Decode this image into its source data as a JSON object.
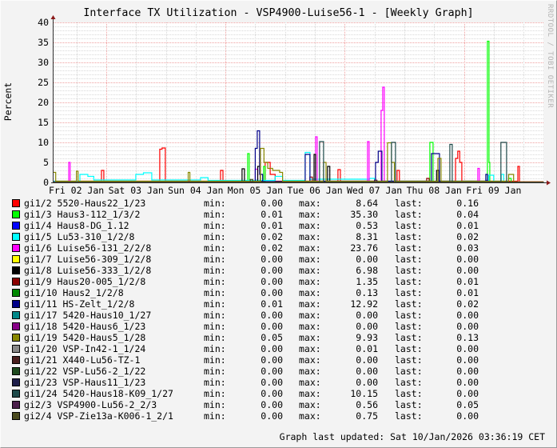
{
  "chart_data": {
    "type": "line",
    "title": "Interface TX Utilization - VSP4900-Luise56-1 - [Weekly Graph]",
    "ylabel": "Percent",
    "xlabel": "",
    "ylim": [
      0,
      40
    ],
    "yticks": [
      "0",
      "5",
      "10",
      "15",
      "20",
      "25",
      "30",
      "35",
      "40"
    ],
    "xlim": [
      "2026-01-02T02:48",
      "2026-01-10T08:00"
    ],
    "xticks": [
      {
        "label": "Fri 02 Jan",
        "at": "2026-01-02T12:00"
      },
      {
        "label": "Sat 03 Jan",
        "at": "2026-01-03T12:00"
      },
      {
        "label": "Sun 04 Jan",
        "at": "2026-01-04T12:00"
      },
      {
        "label": "Mon 05 Jan",
        "at": "2026-01-05T12:00"
      },
      {
        "label": "Tue 06 Jan",
        "at": "2026-01-06T12:00"
      },
      {
        "label": "Wed 07 Jan",
        "at": "2026-01-07T12:00"
      },
      {
        "label": "Thu 08 Jan",
        "at": "2026-01-08T12:00"
      },
      {
        "label": "Fri 09 Jan",
        "at": "2026-01-09T12:00"
      }
    ],
    "grid": true,
    "step": true,
    "legend_position": "bottom",
    "min_label": "min:",
    "max_label": "max:",
    "last_label": "last:",
    "series": [
      {
        "name": "gi1/2 5520-Haus22_1/23",
        "color": "#ff0000",
        "min": "0.00",
        "max": "8.64",
        "last": "0.16",
        "points": [
          [
            "01-02T02:48",
            0.3
          ],
          [
            "01-02T22:06",
            3.0
          ],
          [
            "01-02T23:02",
            0.3
          ],
          [
            "01-03T21:33",
            8.3
          ],
          [
            "01-03T22:30",
            8.6
          ],
          [
            "01-03T23:48",
            0.3
          ],
          [
            "01-04T22:00",
            3.0
          ],
          [
            "01-04T23:00",
            0.3
          ],
          [
            "01-05T16:00",
            5.0
          ],
          [
            "01-05T18:00",
            2.0
          ],
          [
            "01-05T20:00",
            0.3
          ],
          [
            "01-06T21:17",
            3.2
          ],
          [
            "01-06T22:15",
            0.3
          ],
          [
            "01-07T21:05",
            3.0
          ],
          [
            "01-07T22:02",
            0.3
          ],
          [
            "01-08T20:36",
            6.0
          ],
          [
            "01-08T21:30",
            7.8
          ],
          [
            "01-08T22:20",
            5.0
          ],
          [
            "01-08T23:10",
            0.3
          ],
          [
            "01-09T21:42",
            4.0
          ],
          [
            "01-09T22:20",
            0.16
          ]
        ]
      },
      {
        "name": "gi1/3 Haus3-112_1/3/2",
        "color": "#00ff00",
        "min": "0.01",
        "max": "35.30",
        "last": "0.04",
        "points": [
          [
            "01-02T02:48",
            0.05
          ],
          [
            "01-05T08:56",
            7.2
          ],
          [
            "01-05T09:35",
            0.1
          ],
          [
            "01-05T15:20",
            4.0
          ],
          [
            "01-05T16:00",
            0.1
          ],
          [
            "01-08T10:17",
            10.0
          ],
          [
            "01-08T11:34",
            0.2
          ],
          [
            "01-09T09:26",
            35.3
          ],
          [
            "01-09T10:05",
            5.0
          ],
          [
            "01-09T10:24",
            0.1
          ],
          [
            "01-09T18:00",
            1.0
          ],
          [
            "01-09T19:00",
            0.04
          ]
        ]
      },
      {
        "name": "gi1/4 Haus8-DG_1.12",
        "color": "#0000ff",
        "min": "0.01",
        "max": "0.53",
        "last": "0.01",
        "points": [
          [
            "01-02T02:48",
            0.02
          ],
          [
            "01-05T12:00",
            0.53
          ],
          [
            "01-05T13:00",
            0.02
          ],
          [
            "01-09T08:48",
            0.5
          ],
          [
            "01-09T09:30",
            0.01
          ]
        ]
      },
      {
        "name": "gi1/5 Lu53-310_1/2/8",
        "color": "#00ffff",
        "min": "0.02",
        "max": "8.31",
        "last": "0.02",
        "points": [
          [
            "01-02T02:48",
            0.3
          ],
          [
            "01-02T13:24",
            2.0
          ],
          [
            "01-02T16:36",
            1.5
          ],
          [
            "01-02T19:00",
            0.6
          ],
          [
            "01-03T11:54",
            2.0
          ],
          [
            "01-03T15:00",
            2.4
          ],
          [
            "01-03T18:20",
            0.6
          ],
          [
            "01-04T14:00",
            1.2
          ],
          [
            "01-04T17:00",
            0.5
          ],
          [
            "01-05T20:00",
            1.5
          ],
          [
            "01-05T23:00",
            0.5
          ],
          [
            "01-06T08:06",
            7.5
          ],
          [
            "01-06T10:02",
            0.8
          ],
          [
            "01-07T10:00",
            1.0
          ],
          [
            "01-07T12:00",
            0.3
          ],
          [
            "01-09T10:00",
            1.8
          ],
          [
            "01-09T12:00",
            0.3
          ],
          [
            "01-09T15:00",
            2.0
          ],
          [
            "01-09T16:00",
            0.02
          ]
        ]
      },
      {
        "name": "gi1/6 Luise56-131_2/2/8",
        "color": "#ff00ff",
        "min": "0.02",
        "max": "23.76",
        "last": "0.03",
        "points": [
          [
            "01-02T02:48",
            0.1
          ],
          [
            "01-02T08:54",
            5.0
          ],
          [
            "01-02T09:30",
            0.1
          ],
          [
            "01-05T12:00",
            3.3
          ],
          [
            "01-05T13:00",
            0.1
          ],
          [
            "01-06T12:17",
            11.4
          ],
          [
            "01-06T12:56",
            0.1
          ],
          [
            "01-07T09:12",
            10.2
          ],
          [
            "01-07T09:50",
            0.1
          ],
          [
            "01-07T14:40",
            18.0
          ],
          [
            "01-07T15:19",
            23.8
          ],
          [
            "01-07T15:57",
            0.2
          ],
          [
            "01-09T05:36",
            3.5
          ],
          [
            "01-09T06:14",
            0.03
          ]
        ]
      },
      {
        "name": "gi1/7 Luise56-309_1/2/8",
        "color": "#ffff00",
        "min": "0.00",
        "max": "0.00",
        "last": "0.00",
        "points": [
          [
            "01-02T02:48",
            0
          ],
          [
            "01-10T08:00",
            0
          ]
        ]
      },
      {
        "name": "gi1/8 Luise56-333_1/2/8",
        "color": "#000000",
        "min": "0.00",
        "max": "6.98",
        "last": "0.00",
        "points": [
          [
            "01-02T02:48",
            0.1
          ],
          [
            "01-05T06:42",
            3.4
          ],
          [
            "01-05T07:39",
            0.1
          ],
          [
            "01-05T13:00",
            4.0
          ],
          [
            "01-05T14:00",
            0.2
          ],
          [
            "01-06T11:40",
            7.0
          ],
          [
            "01-06T12:17",
            0.2
          ],
          [
            "01-06T17:06",
            4.0
          ],
          [
            "01-06T18:00",
            0.1
          ],
          [
            "01-08T13:00",
            3.0
          ],
          [
            "01-08T14:00",
            0.0
          ]
        ]
      },
      {
        "name": "gi1/9 Haus20-005_1/2/8",
        "color": "#8b0000",
        "min": "0.00",
        "max": "1.35",
        "last": "0.01",
        "points": [
          [
            "01-02T02:48",
            0.1
          ],
          [
            "01-06T10:00",
            1.35
          ],
          [
            "01-06T11:00",
            0.1
          ],
          [
            "01-08T09:00",
            1.0
          ],
          [
            "01-08T10:00",
            0.01
          ]
        ]
      },
      {
        "name": "gi1/10 Haus2_1/2/8",
        "color": "#008800",
        "min": "0.00",
        "max": "0.13",
        "last": "0.01",
        "points": [
          [
            "01-02T02:48",
            0.05
          ],
          [
            "01-10T08:00",
            0.01
          ]
        ]
      },
      {
        "name": "gi1/11 HS-Zelt_1/2/8",
        "color": "#000088",
        "min": "0.01",
        "max": "12.92",
        "last": "0.02",
        "points": [
          [
            "01-02T02:48",
            0.1
          ],
          [
            "01-05T12:00",
            8.5
          ],
          [
            "01-05T12:48",
            12.9
          ],
          [
            "01-05T13:46",
            2.0
          ],
          [
            "01-05T15:00",
            0.2
          ],
          [
            "01-06T08:06",
            7.0
          ],
          [
            "01-06T10:02",
            0.3
          ],
          [
            "01-07T12:25",
            5.0
          ],
          [
            "01-07T13:30",
            7.8
          ],
          [
            "01-07T15:00",
            0.3
          ],
          [
            "01-08T10:56",
            7.2
          ],
          [
            "01-08T14:09",
            0.3
          ],
          [
            "01-09T08:48",
            2.0
          ],
          [
            "01-09T09:30",
            0.02
          ]
        ]
      },
      {
        "name": "gi1/17 5420-Haus10_1/27",
        "color": "#008888",
        "min": "0.00",
        "max": "0.00",
        "last": "0.00",
        "points": [
          [
            "01-02T02:48",
            0
          ],
          [
            "01-10T08:00",
            0
          ]
        ]
      },
      {
        "name": "gi1/18 5420-Haus6_1/23",
        "color": "#880088",
        "min": "0.00",
        "max": "0.00",
        "last": "0.00",
        "points": [
          [
            "01-02T02:48",
            0
          ],
          [
            "01-10T08:00",
            0
          ]
        ]
      },
      {
        "name": "gi1/19 5420-Haus5_1/28",
        "color": "#888800",
        "min": "0.05",
        "max": "9.93",
        "last": "0.13",
        "points": [
          [
            "01-02T02:48",
            2.5
          ],
          [
            "01-02T03:40",
            0.3
          ],
          [
            "01-02T12:00",
            2.8
          ],
          [
            "01-02T12:40",
            0.3
          ],
          [
            "01-04T09:00",
            2.5
          ],
          [
            "01-04T09:40",
            0.3
          ],
          [
            "01-05T14:05",
            8.5
          ],
          [
            "01-05T15:30",
            5.0
          ],
          [
            "01-05T17:00",
            3.5
          ],
          [
            "01-05T19:00",
            3.0
          ],
          [
            "01-05T21:48",
            2.5
          ],
          [
            "01-05T23:00",
            0.3
          ],
          [
            "01-06T15:30",
            5.0
          ],
          [
            "01-06T16:30",
            0.3
          ],
          [
            "01-07T17:15",
            9.9
          ],
          [
            "01-07T18:51",
            5.0
          ],
          [
            "01-07T20:00",
            0.3
          ],
          [
            "01-08T13:30",
            6.0
          ],
          [
            "01-08T14:48",
            0.3
          ],
          [
            "01-09T18:00",
            2.0
          ],
          [
            "01-09T20:00",
            0.13
          ]
        ]
      },
      {
        "name": "gi1/20 VSP-In42-1_1/24",
        "color": "#888888",
        "min": "0.00",
        "max": "0.01",
        "last": "0.00",
        "points": [
          [
            "01-02T02:48",
            0
          ],
          [
            "01-10T08:00",
            0
          ]
        ]
      },
      {
        "name": "gi1/21 X440-Lu56-TZ-1",
        "color": "#4a1e1e",
        "min": "0.00",
        "max": "0.00",
        "last": "0.00",
        "points": [
          [
            "01-02T02:48",
            0
          ],
          [
            "01-10T08:00",
            0
          ]
        ]
      },
      {
        "name": "gi1/22 VSP-Lu56-2_1/22",
        "color": "#1e4a1e",
        "min": "0.00",
        "max": "0.00",
        "last": "0.00",
        "points": [
          [
            "01-02T02:48",
            0
          ],
          [
            "01-10T08:00",
            0
          ]
        ]
      },
      {
        "name": "gi1/23 VSP-Haus11_1/23",
        "color": "#1e1e4a",
        "min": "0.00",
        "max": "0.00",
        "last": "0.00",
        "points": [
          [
            "01-02T02:48",
            0
          ],
          [
            "01-10T08:00",
            0
          ]
        ]
      },
      {
        "name": "gi1/24 5420-Haus18-K09_1/27",
        "color": "#1e4a4a",
        "min": "0.00",
        "max": "10.15",
        "last": "0.00",
        "points": [
          [
            "01-02T02:48",
            0.05
          ],
          [
            "01-06T13:54",
            10.2
          ],
          [
            "01-06T15:30",
            0.1
          ],
          [
            "01-07T18:51",
            10.0
          ],
          [
            "01-07T20:27",
            0.1
          ],
          [
            "01-08T18:20",
            9.5
          ],
          [
            "01-08T19:18",
            0.1
          ],
          [
            "01-09T14:54",
            10.0
          ],
          [
            "01-09T17:10",
            0.0
          ]
        ]
      },
      {
        "name": "gi2/3 VSP4900-Lu56-2_2/3",
        "color": "#4a1e4a",
        "min": "0.00",
        "max": "0.56",
        "last": "0.05",
        "points": [
          [
            "01-02T02:48",
            0.05
          ],
          [
            "01-07T12:00",
            0.56
          ],
          [
            "01-07T13:00",
            0.05
          ]
        ]
      },
      {
        "name": "gi2/4 VSP-Zie13a-K006-1_2/1",
        "color": "#4a4a1e",
        "min": "0.00",
        "max": "0.75",
        "last": "0.00",
        "points": [
          [
            "01-02T02:48",
            0.05
          ],
          [
            "01-05T10:00",
            0.75
          ],
          [
            "01-05T11:00",
            0.05
          ],
          [
            "01-10T08:00",
            0.0
          ]
        ]
      }
    ]
  },
  "credit": "RRDTOOL / TOBI OETIKER",
  "footer": "Graph last updated: Sat 10/Jan/2026 03:36:19 CET"
}
